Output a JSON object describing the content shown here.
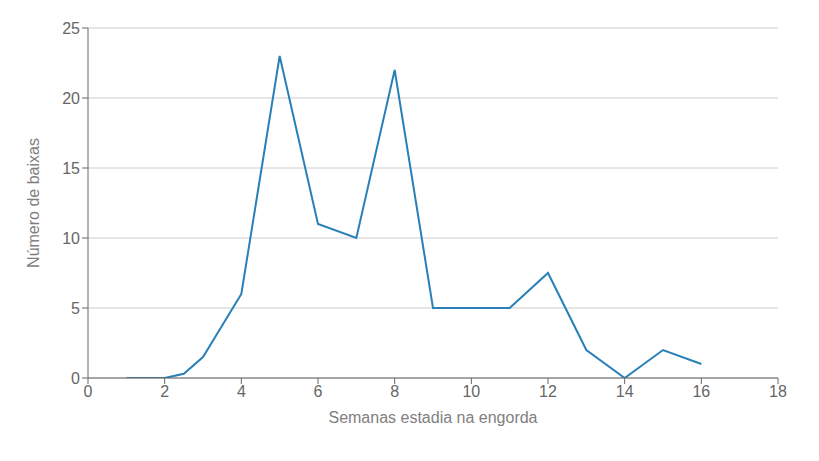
{
  "chart_data": {
    "type": "line",
    "xlabel": "Semanas estadia na engorda",
    "ylabel": "Número de baixas",
    "x": [
      1,
      2,
      2.5,
      3,
      4,
      5,
      6,
      7,
      8,
      9,
      10,
      11,
      12,
      13,
      14,
      15,
      16
    ],
    "values": [
      0,
      0,
      0.3,
      1.5,
      6,
      23,
      11,
      10,
      22,
      5,
      5,
      5,
      7.5,
      2,
      0,
      2,
      1
    ],
    "color": "#2980b9",
    "xlim": [
      0,
      18
    ],
    "ylim": [
      0,
      25
    ],
    "xticks": [
      0,
      2,
      4,
      6,
      8,
      10,
      12,
      14,
      16,
      18
    ],
    "yticks": [
      0,
      5,
      10,
      15,
      20,
      25
    ],
    "grid": true
  }
}
